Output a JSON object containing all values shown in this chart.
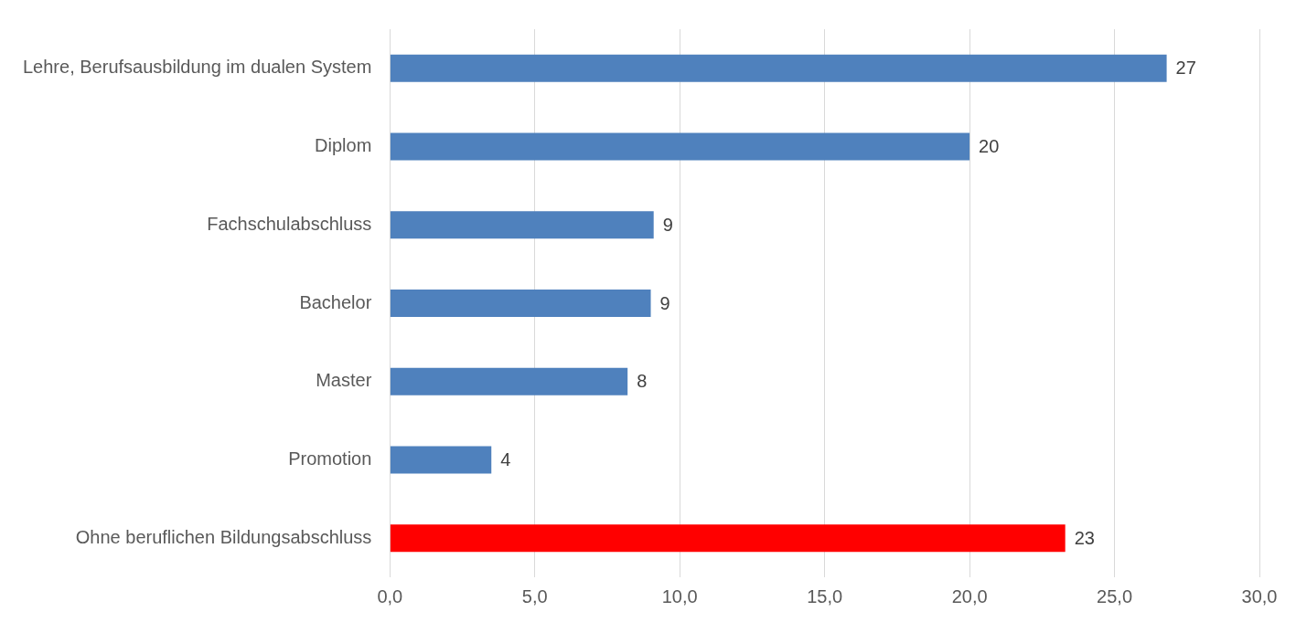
{
  "chart_data": {
    "type": "bar",
    "orientation": "horizontal",
    "categories": [
      "Lehre, Berufsausbildung im dualen System",
      "Diplom",
      "Fachschulabschluss",
      "Bachelor",
      "Master",
      "Promotion",
      "Ohne beruflichen Bildungsabschluss"
    ],
    "values": [
      26.8,
      20.0,
      9.1,
      9.0,
      8.2,
      3.5,
      23.3
    ],
    "colors": [
      "#4f81bd",
      "#4f81bd",
      "#4f81bd",
      "#4f81bd",
      "#4f81bd",
      "#4f81bd",
      "#ff0000"
    ],
    "value_labels": [
      "27",
      "20",
      "9",
      "9",
      "8",
      "4",
      "23"
    ],
    "xlim": [
      0,
      30
    ],
    "xticks": [
      {
        "value": 0,
        "label": "0,0"
      },
      {
        "value": 5,
        "label": "5,0"
      },
      {
        "value": 10,
        "label": "10,0"
      },
      {
        "value": 15,
        "label": "15,0"
      },
      {
        "value": 20,
        "label": "20,0"
      },
      {
        "value": 25,
        "label": "25,0"
      },
      {
        "value": 30,
        "label": "30,0"
      }
    ],
    "grid": "x",
    "legend": false
  }
}
